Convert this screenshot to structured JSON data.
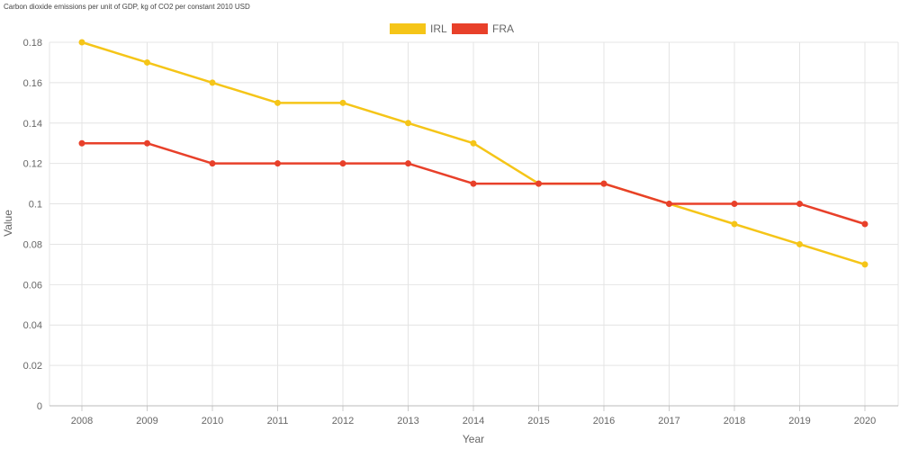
{
  "chart_data": {
    "type": "line",
    "title": "Carbon dioxide emissions per unit of GDP, kg of CO2 per constant 2010 USD",
    "xlabel": "Year",
    "ylabel": "Value",
    "ylim": [
      0,
      0.18
    ],
    "yticks": [
      "0",
      "0.02",
      "0.04",
      "0.06",
      "0.08",
      "0.1",
      "0.12",
      "0.14",
      "0.16",
      "0.18"
    ],
    "ytick_values": [
      0,
      0.02,
      0.04,
      0.06,
      0.08,
      0.1,
      0.12,
      0.14,
      0.16,
      0.18
    ],
    "grid": true,
    "legend_position": "top-center",
    "categories": [
      "2008",
      "2009",
      "2010",
      "2011",
      "2012",
      "2013",
      "2014",
      "2015",
      "2016",
      "2017",
      "2018",
      "2019",
      "2020"
    ],
    "series": [
      {
        "name": "IRL",
        "color": "#f5c518",
        "values": [
          0.18,
          0.17,
          0.16,
          0.15,
          0.15,
          0.14,
          0.13,
          0.11,
          0.11,
          0.1,
          0.09,
          0.08,
          0.07
        ]
      },
      {
        "name": "FRA",
        "color": "#e8402a",
        "values": [
          0.13,
          0.13,
          0.12,
          0.12,
          0.12,
          0.12,
          0.11,
          0.11,
          0.11,
          0.1,
          0.1,
          0.1,
          0.09
        ]
      }
    ]
  }
}
